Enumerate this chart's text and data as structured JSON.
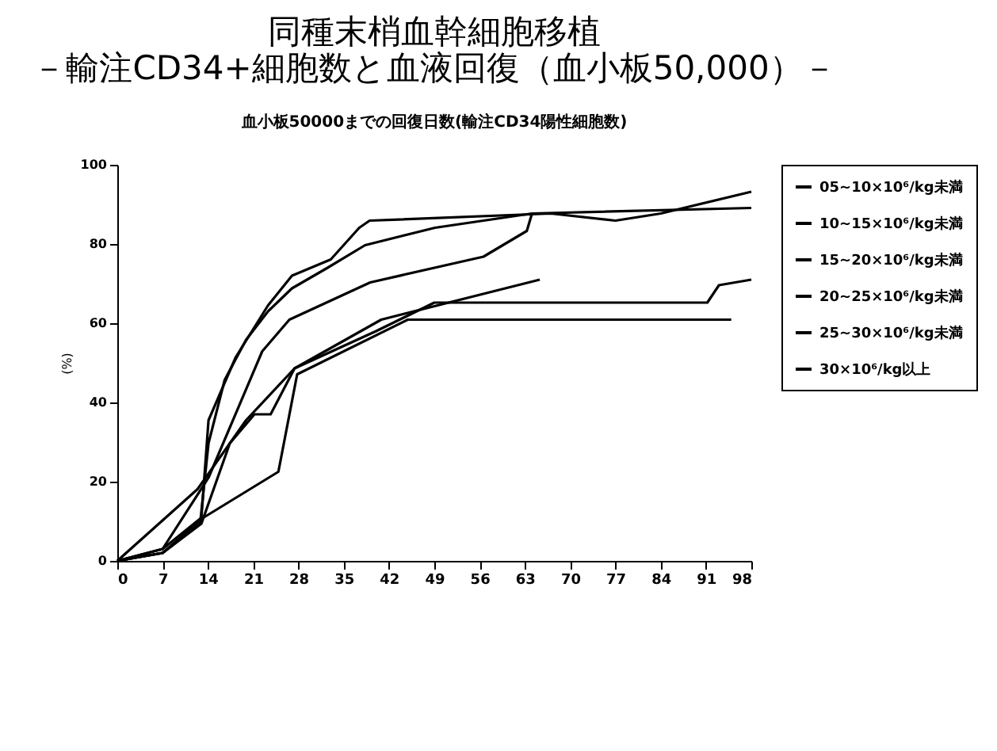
{
  "chart_data": {
    "type": "line",
    "title": "同種末梢血幹細胞移植",
    "subtitle": "－輸注CD34+細胞数と血液回復（血小板50,000）－",
    "annotations": [
      "血小板50000までの回復日数(輸注CD34陽性細胞数)"
    ],
    "ylabel": "(%)",
    "xlim": [
      0,
      98
    ],
    "xticks": [
      0,
      7,
      14,
      21,
      28,
      35,
      42,
      49,
      56,
      63,
      70,
      77,
      84,
      91,
      98
    ],
    "ylim": [
      0,
      100
    ],
    "yticks": [
      0,
      20,
      40,
      60,
      80,
      100
    ],
    "grid": false,
    "legend": "right",
    "marker": "none",
    "line_style": "solid",
    "series": [
      {
        "name": "05~10×10⁶/kg未満",
        "color": "#000000",
        "x": [
          0,
          7,
          13.3,
          24.9,
          27.8,
          44.9,
          94.9
        ],
        "values": [
          0,
          2,
          10.9,
          22.5,
          47.1,
          60.9,
          60.9
        ]
      },
      {
        "name": "10~15×10⁶/kg未満",
        "color": "#000000",
        "x": [
          0,
          7,
          13,
          17.4,
          21.2,
          23.7,
          27.4,
          40,
          49,
          91.2,
          93,
          98
        ],
        "values": [
          0,
          2,
          9.4,
          29.7,
          37,
          37,
          48.6,
          58,
          65.2,
          65.2,
          69.6,
          71
        ]
      },
      {
        "name": "15~20×10⁶/kg未満",
        "color": "#000000",
        "x": [
          0,
          12.4,
          19.9,
          27.4,
          40.8,
          65.3
        ],
        "values": [
          0,
          18.1,
          35.5,
          48.6,
          60.9,
          71
        ]
      },
      {
        "name": "20~25×10⁶/kg未満",
        "color": "#000000",
        "x": [
          0,
          7,
          14.1,
          22.4,
          26.6,
          39.1,
          56.6,
          63.3,
          64.1,
          98
        ],
        "values": [
          0,
          3,
          21,
          52.9,
          60.9,
          70.3,
          76.8,
          83.3,
          87.7,
          89.1
        ]
      },
      {
        "name": "25~30×10⁶/kg未満",
        "color": "#000000",
        "x": [
          0,
          7,
          12.8,
          14.1,
          16.6,
          19.9,
          23.3,
          27,
          32.4,
          38.3,
          49.1,
          64.1
        ],
        "values": [
          0,
          2,
          9.4,
          29.7,
          45.7,
          55.8,
          63,
          68.8,
          73.9,
          79.7,
          84.1,
          87.7
        ]
      },
      {
        "name": "30×10⁶/kg以上",
        "color": "#000000",
        "x": [
          0,
          7,
          13,
          14.1,
          18.3,
          23.3,
          27,
          33,
          37.4,
          39,
          67,
          77,
          84,
          98
        ],
        "values": [
          0,
          3,
          10.9,
          35.5,
          51.4,
          64.5,
          72,
          76.1,
          84.1,
          85.9,
          87.7,
          85.9,
          87.7,
          93.2
        ]
      }
    ]
  }
}
